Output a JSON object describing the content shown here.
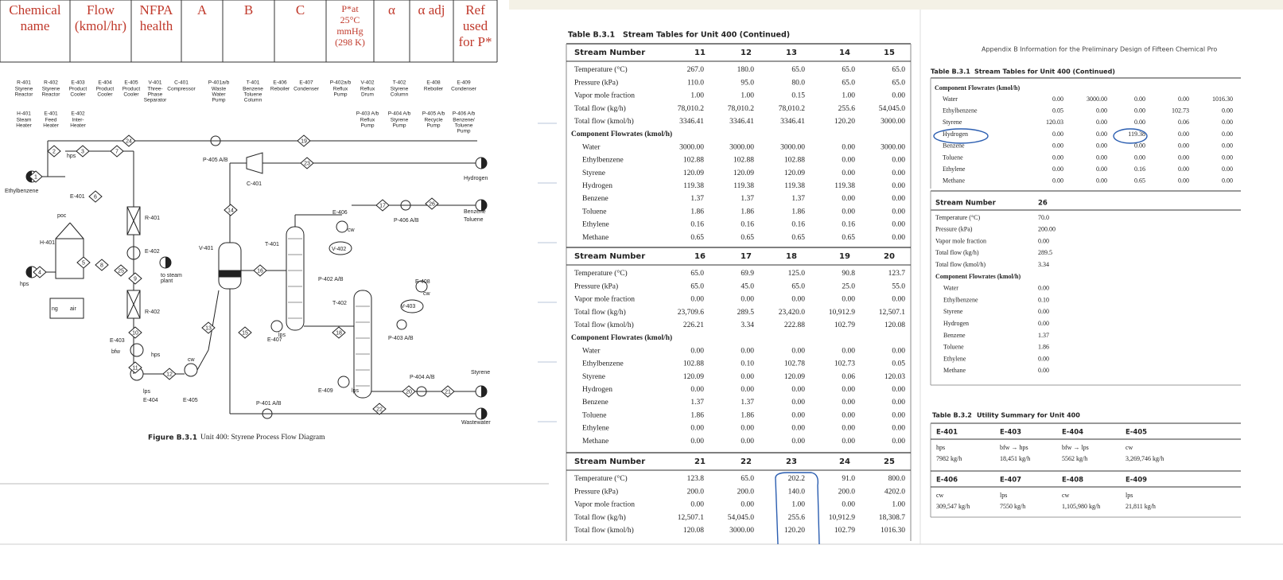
{
  "left": {
    "property_header": [
      [
        "Chemical",
        "name"
      ],
      [
        "Flow",
        "(kmol/hr)"
      ],
      [
        "NFPA",
        "health"
      ],
      [
        "A"
      ],
      [
        "B"
      ],
      [
        "C"
      ],
      [
        "P*at",
        "25°C",
        "mmHg",
        "(298 K)"
      ],
      [
        "α"
      ],
      [
        "α adj"
      ],
      [
        "Ref",
        "used",
        "for P*"
      ]
    ],
    "equipment_row1": [
      {
        "tag": "R-401",
        "desc": [
          "Styrene",
          "Reactor"
        ]
      },
      {
        "tag": "R-402",
        "desc": [
          "Styrene",
          "Reactor"
        ]
      },
      {
        "tag": "E-403",
        "desc": [
          "Product",
          "Cooler"
        ]
      },
      {
        "tag": "E-404",
        "desc": [
          "Product",
          "Cooler"
        ]
      },
      {
        "tag": "E-405",
        "desc": [
          "Product",
          "Cooler"
        ]
      },
      {
        "tag": "V-401",
        "desc": [
          "Three-",
          "Phase",
          "Separator"
        ]
      },
      {
        "tag": "C-401",
        "desc": [
          "Compressor"
        ]
      },
      {
        "tag": "P-401a/b",
        "desc": [
          "Waste",
          "Water",
          "Pump"
        ]
      },
      {
        "tag": "T-401",
        "desc": [
          "Benzene",
          "Toluene",
          "Column"
        ]
      },
      {
        "tag": "E-406",
        "desc": [
          "Reboiler"
        ]
      },
      {
        "tag": "E-407",
        "desc": [
          "Condenser"
        ]
      },
      {
        "tag": "P-402a/b",
        "desc": [
          "Reflux",
          "Pump"
        ]
      },
      {
        "tag": "V-402",
        "desc": [
          "Reflux",
          "Drum"
        ]
      },
      {
        "tag": "T-402",
        "desc": [
          "Styrene",
          "Column"
        ]
      },
      {
        "tag": "E-408",
        "desc": [
          "Reboiler"
        ]
      },
      {
        "tag": "E-409",
        "desc": [
          "Condenser"
        ]
      }
    ],
    "equipment_row2": [
      {
        "tag": "H-401",
        "desc": [
          "Steam",
          "Heater"
        ]
      },
      {
        "tag": "E-401",
        "desc": [
          "Feed",
          "Heater"
        ]
      },
      {
        "tag": "E-402",
        "desc": [
          "Inter-",
          "Heater"
        ]
      },
      {
        "tag": "P-403 A/b",
        "desc": [
          "Reflux",
          "Pump"
        ]
      },
      {
        "tag": "P-404 A/b",
        "desc": [
          "Styrene",
          "Pump"
        ]
      },
      {
        "tag": "P-405 A/b",
        "desc": [
          "Recycle",
          "Pump"
        ]
      },
      {
        "tag": "P-406 A/b",
        "desc": [
          "Benzene/",
          "Toluene",
          "Pump"
        ]
      }
    ],
    "diagram_labels": [
      "Ethylbenzene",
      "E-401",
      "poc",
      "R-401",
      "H-401",
      "E-402",
      "to steam",
      "plant",
      "hps",
      "ng",
      "air",
      "R-402",
      "E-403",
      "bfw",
      "hps",
      "lps",
      "E-404",
      "E-405",
      "cw",
      "V-401",
      "P-405 A/B",
      "C-401",
      "Hydrogen",
      "T-401",
      "E-406",
      "V-402",
      "P-402 A/B",
      "E-407",
      "T-402",
      "E-408",
      "V-403",
      "P-403 A/B",
      "Benzene",
      "Toluene",
      "P-406 A/B",
      "E-409",
      "lps",
      "P-404 A/B",
      "Styrene",
      "P-401 A/B",
      "Wastewater",
      "hps",
      "cw",
      "cw",
      "lps"
    ],
    "streams": [
      "1",
      "2",
      "3",
      "4",
      "5",
      "6",
      "7",
      "8",
      "9",
      "10",
      "11",
      "12",
      "13",
      "14",
      "15",
      "16",
      "17",
      "18",
      "19",
      "20",
      "21",
      "22",
      "23",
      "24",
      "25",
      "26"
    ],
    "caption_label": "Figure B.3.1",
    "caption": "Unit 400: Styrene Process Flow Diagram"
  },
  "middle": {
    "title_label": "Table B.3.1",
    "title": "Stream Tables for Unit 400 (Continued)",
    "blocks": [
      {
        "header": "Stream Number",
        "streams": [
          "11",
          "12",
          "13",
          "14",
          "15"
        ],
        "rows": [
          {
            "label": "Temperature (°C)",
            "values": [
              "267.0",
              "180.0",
              "65.0",
              "65.0",
              "65.0"
            ]
          },
          {
            "label": "Pressure (kPa)",
            "values": [
              "110.0",
              "95.0",
              "80.0",
              "65.0",
              "65.0"
            ]
          },
          {
            "label": "Vapor mole fraction",
            "values": [
              "1.00",
              "1.00",
              "0.15",
              "1.00",
              "0.00"
            ]
          },
          {
            "label": "Total flow (kg/h)",
            "values": [
              "78,010.2",
              "78,010.2",
              "78,010.2",
              "255.6",
              "54,045.0"
            ]
          },
          {
            "label": "Total flow (kmol/h)",
            "values": [
              "3346.41",
              "3346.41",
              "3346.41",
              "120.20",
              "3000.00"
            ]
          }
        ],
        "section": "Component Flowrates (kmol/h)",
        "component_rows": [
          {
            "label": "Water",
            "values": [
              "3000.00",
              "3000.00",
              "3000.00",
              "0.00",
              "3000.00"
            ]
          },
          {
            "label": "Ethylbenzene",
            "values": [
              "102.88",
              "102.88",
              "102.88",
              "0.00",
              "0.00"
            ]
          },
          {
            "label": "Styrene",
            "values": [
              "120.09",
              "120.09",
              "120.09",
              "0.00",
              "0.00"
            ]
          },
          {
            "label": "Hydrogen",
            "values": [
              "119.38",
              "119.38",
              "119.38",
              "119.38",
              "0.00"
            ]
          },
          {
            "label": "Benzene",
            "values": [
              "1.37",
              "1.37",
              "1.37",
              "0.00",
              "0.00"
            ]
          },
          {
            "label": "Toluene",
            "values": [
              "1.86",
              "1.86",
              "1.86",
              "0.00",
              "0.00"
            ]
          },
          {
            "label": "Ethylene",
            "values": [
              "0.16",
              "0.16",
              "0.16",
              "0.16",
              "0.00"
            ]
          },
          {
            "label": "Methane",
            "values": [
              "0.65",
              "0.65",
              "0.65",
              "0.65",
              "0.00"
            ]
          }
        ]
      },
      {
        "header": "Stream Number",
        "streams": [
          "16",
          "17",
          "18",
          "19",
          "20"
        ],
        "rows": [
          {
            "label": "Temperature (°C)",
            "values": [
              "65.0",
              "69.9",
              "125.0",
              "90.8",
              "123.7"
            ]
          },
          {
            "label": "Pressure (kPa)",
            "values": [
              "65.0",
              "45.0",
              "65.0",
              "25.0",
              "55.0"
            ]
          },
          {
            "label": "Vapor mole fraction",
            "values": [
              "0.00",
              "0.00",
              "0.00",
              "0.00",
              "0.00"
            ]
          },
          {
            "label": "Total flow (kg/h)",
            "values": [
              "23,709.6",
              "289.5",
              "23,420.0",
              "10,912.9",
              "12,507.1"
            ]
          },
          {
            "label": "Total flow (kmol/h)",
            "values": [
              "226.21",
              "3.34",
              "222.88",
              "102.79",
              "120.08"
            ]
          }
        ],
        "section": "Component Flowrates (kmol/h)",
        "component_rows": [
          {
            "label": "Water",
            "values": [
              "0.00",
              "0.00",
              "0.00",
              "0.00",
              "0.00"
            ]
          },
          {
            "label": "Ethylbenzene",
            "values": [
              "102.88",
              "0.10",
              "102.78",
              "102.73",
              "0.05"
            ]
          },
          {
            "label": "Styrene",
            "values": [
              "120.09",
              "0.00",
              "120.09",
              "0.06",
              "120.03"
            ]
          },
          {
            "label": "Hydrogen",
            "values": [
              "0.00",
              "0.00",
              "0.00",
              "0.00",
              "0.00"
            ]
          },
          {
            "label": "Benzene",
            "values": [
              "1.37",
              "1.37",
              "0.00",
              "0.00",
              "0.00"
            ]
          },
          {
            "label": "Toluene",
            "values": [
              "1.86",
              "1.86",
              "0.00",
              "0.00",
              "0.00"
            ]
          },
          {
            "label": "Ethylene",
            "values": [
              "0.00",
              "0.00",
              "0.00",
              "0.00",
              "0.00"
            ]
          },
          {
            "label": "Methane",
            "values": [
              "0.00",
              "0.00",
              "0.00",
              "0.00",
              "0.00"
            ]
          }
        ]
      },
      {
        "header": "Stream Number",
        "streams": [
          "21",
          "22",
          "23",
          "24",
          "25"
        ],
        "rows": [
          {
            "label": "Temperature (°C)",
            "values": [
              "123.8",
              "65.0",
              "202.2",
              "91.0",
              "800.0"
            ]
          },
          {
            "label": "Pressure (kPa)",
            "values": [
              "200.0",
              "200.0",
              "140.0",
              "200.0",
              "4202.0"
            ]
          },
          {
            "label": "Vapor mole fraction",
            "values": [
              "0.00",
              "0.00",
              "1.00",
              "0.00",
              "1.00"
            ]
          },
          {
            "label": "Total flow (kg/h)",
            "values": [
              "12,507.1",
              "54,045.0",
              "255.6",
              "10,912.9",
              "18,308.7"
            ]
          },
          {
            "label": "Total flow (kmol/h)",
            "values": [
              "120.08",
              "3000.00",
              "120.20",
              "102.79",
              "1016.30"
            ]
          }
        ]
      }
    ]
  },
  "right": {
    "page_header": "Appendix B   Information for the Preliminary Design of Fifteen Chemical Pro",
    "title_label": "Table B.3.1",
    "title": "Stream Tables for Unit 400 (Continued)",
    "section": "Component Flowrates (kmol/h)",
    "component_rows": [
      {
        "label": "Water",
        "values": [
          "0.00",
          "3000.00",
          "0.00",
          "0.00",
          "1016.30"
        ]
      },
      {
        "label": "Ethylbenzene",
        "values": [
          "0.05",
          "0.00",
          "0.00",
          "102.73",
          "0.00"
        ]
      },
      {
        "label": "Styrene",
        "values": [
          "120.03",
          "0.00",
          "0.00",
          "0.06",
          "0.00"
        ]
      },
      {
        "label": "Hydrogen",
        "values": [
          "0.00",
          "0.00",
          "119.38",
          "0.00",
          "0.00"
        ]
      },
      {
        "label": "Benzene",
        "values": [
          "0.00",
          "0.00",
          "0.00",
          "0.00",
          "0.00"
        ]
      },
      {
        "label": "Toluene",
        "values": [
          "0.00",
          "0.00",
          "0.00",
          "0.00",
          "0.00"
        ]
      },
      {
        "label": "Ethylene",
        "values": [
          "0.00",
          "0.00",
          "0.16",
          "0.00",
          "0.00"
        ]
      },
      {
        "label": "Methane",
        "values": [
          "0.00",
          "0.00",
          "0.65",
          "0.00",
          "0.00"
        ]
      }
    ],
    "stream26": {
      "header": "Stream Number",
      "stream": "26",
      "rows": [
        {
          "label": "Temperature (°C)",
          "value": "70.0"
        },
        {
          "label": "Pressure (kPa)",
          "value": "200.00"
        },
        {
          "label": "Vapor mole fraction",
          "value": "0.00"
        },
        {
          "label": "Total flow (kg/h)",
          "value": "289.5"
        },
        {
          "label": "Total flow (kmol/h)",
          "value": "3.34"
        }
      ],
      "section": "Component Flowrates (kmol/h)",
      "component_rows": [
        {
          "label": "Water",
          "value": "0.00"
        },
        {
          "label": "Ethylbenzene",
          "value": "0.10"
        },
        {
          "label": "Styrene",
          "value": "0.00"
        },
        {
          "label": "Hydrogen",
          "value": "0.00"
        },
        {
          "label": "Benzene",
          "value": "1.37"
        },
        {
          "label": "Toluene",
          "value": "1.86"
        },
        {
          "label": "Ethylene",
          "value": "0.00"
        },
        {
          "label": "Methane",
          "value": "0.00"
        }
      ]
    },
    "utility": {
      "title_label": "Table B.3.2",
      "title": "Utility Summary for Unit 400",
      "groups": [
        [
          {
            "tag": "E-401",
            "utility": "hps",
            "amount": "7982 kg/h"
          },
          {
            "tag": "E-403",
            "utility": "bfw → hps",
            "amount": "18,451 kg/h"
          },
          {
            "tag": "E-404",
            "utility": "bfw → lps",
            "amount": "5562 kg/h"
          },
          {
            "tag": "E-405",
            "utility": "cw",
            "amount": "3,269,746 kg/h"
          }
        ],
        [
          {
            "tag": "E-406",
            "utility": "cw",
            "amount": "309,547 kg/h"
          },
          {
            "tag": "E-407",
            "utility": "lps",
            "amount": "7550 kg/h"
          },
          {
            "tag": "E-408",
            "utility": "cw",
            "amount": "1,105,980 kg/h"
          },
          {
            "tag": "E-409",
            "utility": "lps",
            "amount": "21,811 kg/h"
          }
        ]
      ]
    }
  }
}
